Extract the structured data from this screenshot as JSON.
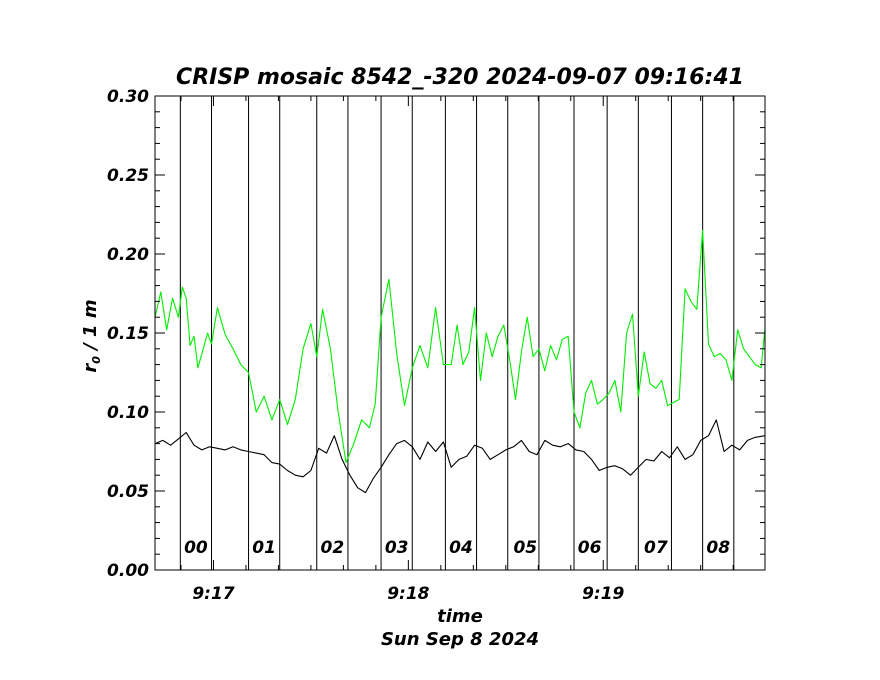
{
  "chart_data": {
    "type": "line",
    "title": "CRISP mosaic 8542_-320 2024-09-07 09:16:41",
    "xlabel": "time",
    "xsublabel": "Sun Sep  8 2024",
    "ylabel_main": "r",
    "ylabel_sub": "0",
    "ylabel_rest": " / 1 m",
    "xlim": [
      16.7,
      19.83
    ],
    "ylim": [
      0.0,
      0.3
    ],
    "yticks": [
      {
        "value": 0.0,
        "label": "0.00"
      },
      {
        "value": 0.05,
        "label": "0.05"
      },
      {
        "value": 0.1,
        "label": "0.10"
      },
      {
        "value": 0.15,
        "label": "0.15"
      },
      {
        "value": 0.2,
        "label": "0.20"
      },
      {
        "value": 0.25,
        "label": "0.25"
      },
      {
        "value": 0.3,
        "label": "0.30"
      }
    ],
    "xticks": [
      {
        "value": 17,
        "label": "9:17"
      },
      {
        "value": 18,
        "label": "9:18"
      },
      {
        "value": 19,
        "label": "9:19"
      }
    ],
    "segment_boundaries": [
      16.83,
      16.99,
      17.18,
      17.34,
      17.53,
      17.69,
      17.86,
      18.02,
      18.19,
      18.35,
      18.51,
      18.67,
      18.85,
      19.02,
      19.18,
      19.35,
      19.51,
      19.67
    ],
    "segments": [
      {
        "label": "00",
        "x": 16.91
      },
      {
        "label": "01",
        "x": 17.26
      },
      {
        "label": "02",
        "x": 17.61
      },
      {
        "label": "03",
        "x": 17.94
      },
      {
        "label": "04",
        "x": 18.27
      },
      {
        "label": "05",
        "x": 18.6
      },
      {
        "label": "06",
        "x": 18.93
      },
      {
        "label": "07",
        "x": 19.27
      },
      {
        "label": "08",
        "x": 19.59
      }
    ],
    "series": [
      {
        "name": "green",
        "color": "#00ee00",
        "x": [
          16.7,
          16.73,
          16.76,
          16.79,
          16.82,
          16.84,
          16.86,
          16.88,
          16.9,
          16.92,
          16.95,
          16.97,
          16.99,
          17.02,
          17.06,
          17.1,
          17.14,
          17.18,
          17.22,
          17.26,
          17.3,
          17.34,
          17.38,
          17.42,
          17.46,
          17.5,
          17.53,
          17.56,
          17.6,
          17.64,
          17.68,
          17.72,
          17.76,
          17.8,
          17.83,
          17.86,
          17.9,
          17.94,
          17.98,
          18.02,
          18.06,
          18.1,
          18.14,
          18.18,
          18.22,
          18.25,
          18.28,
          18.31,
          18.34,
          18.37,
          18.4,
          18.43,
          18.46,
          18.49,
          18.52,
          18.55,
          18.58,
          18.61,
          18.64,
          18.67,
          18.7,
          18.73,
          18.76,
          18.79,
          18.82,
          18.85,
          18.88,
          18.91,
          18.94,
          18.97,
          19.0,
          19.03,
          19.06,
          19.09,
          19.12,
          19.15,
          19.18,
          19.21,
          19.24,
          19.27,
          19.3,
          19.33,
          19.36,
          19.39,
          19.42,
          19.45,
          19.48,
          19.51,
          19.54,
          19.57,
          19.6,
          19.63,
          19.66,
          19.69,
          19.72,
          19.75,
          19.78,
          19.81,
          19.83
        ],
        "values": [
          0.16,
          0.176,
          0.152,
          0.172,
          0.16,
          0.179,
          0.172,
          0.142,
          0.148,
          0.128,
          0.141,
          0.15,
          0.143,
          0.166,
          0.149,
          0.14,
          0.13,
          0.125,
          0.1,
          0.11,
          0.095,
          0.108,
          0.092,
          0.108,
          0.14,
          0.156,
          0.135,
          0.165,
          0.14,
          0.1,
          0.068,
          0.08,
          0.095,
          0.09,
          0.105,
          0.16,
          0.184,
          0.137,
          0.104,
          0.128,
          0.142,
          0.128,
          0.166,
          0.13,
          0.13,
          0.155,
          0.13,
          0.138,
          0.166,
          0.12,
          0.15,
          0.135,
          0.148,
          0.155,
          0.133,
          0.108,
          0.138,
          0.16,
          0.135,
          0.14,
          0.126,
          0.142,
          0.133,
          0.146,
          0.148,
          0.1,
          0.09,
          0.112,
          0.12,
          0.105,
          0.108,
          0.112,
          0.12,
          0.1,
          0.15,
          0.162,
          0.11,
          0.138,
          0.118,
          0.115,
          0.12,
          0.104,
          0.106,
          0.108,
          0.178,
          0.17,
          0.165,
          0.215,
          0.143,
          0.135,
          0.137,
          0.133,
          0.12,
          0.152,
          0.14,
          0.135,
          0.13,
          0.128,
          0.153
        ]
      },
      {
        "name": "black",
        "color": "#000000",
        "x": [
          16.7,
          16.74,
          16.78,
          16.82,
          16.86,
          16.9,
          16.94,
          16.98,
          17.02,
          17.06,
          17.1,
          17.14,
          17.18,
          17.22,
          17.26,
          17.3,
          17.34,
          17.38,
          17.42,
          17.46,
          17.5,
          17.54,
          17.58,
          17.62,
          17.66,
          17.7,
          17.74,
          17.78,
          17.82,
          17.86,
          17.9,
          17.94,
          17.98,
          18.02,
          18.06,
          18.1,
          18.14,
          18.18,
          18.22,
          18.26,
          18.3,
          18.34,
          18.38,
          18.42,
          18.46,
          18.5,
          18.54,
          18.58,
          18.62,
          18.66,
          18.7,
          18.74,
          18.78,
          18.82,
          18.86,
          18.9,
          18.94,
          18.98,
          19.02,
          19.06,
          19.1,
          19.14,
          19.18,
          19.22,
          19.26,
          19.3,
          19.34,
          19.38,
          19.42,
          19.46,
          19.5,
          19.54,
          19.58,
          19.62,
          19.66,
          19.7,
          19.74,
          19.78,
          19.83
        ],
        "values": [
          0.08,
          0.082,
          0.079,
          0.083,
          0.087,
          0.079,
          0.076,
          0.078,
          0.077,
          0.076,
          0.078,
          0.076,
          0.075,
          0.074,
          0.073,
          0.068,
          0.067,
          0.063,
          0.06,
          0.059,
          0.063,
          0.077,
          0.074,
          0.085,
          0.07,
          0.06,
          0.052,
          0.049,
          0.058,
          0.065,
          0.073,
          0.08,
          0.082,
          0.078,
          0.07,
          0.081,
          0.075,
          0.081,
          0.065,
          0.07,
          0.072,
          0.079,
          0.077,
          0.07,
          0.073,
          0.076,
          0.078,
          0.082,
          0.075,
          0.073,
          0.082,
          0.079,
          0.078,
          0.08,
          0.076,
          0.075,
          0.07,
          0.063,
          0.065,
          0.066,
          0.064,
          0.06,
          0.065,
          0.07,
          0.069,
          0.075,
          0.071,
          0.078,
          0.07,
          0.073,
          0.082,
          0.085,
          0.095,
          0.075,
          0.079,
          0.076,
          0.082,
          0.084,
          0.085
        ]
      }
    ]
  }
}
